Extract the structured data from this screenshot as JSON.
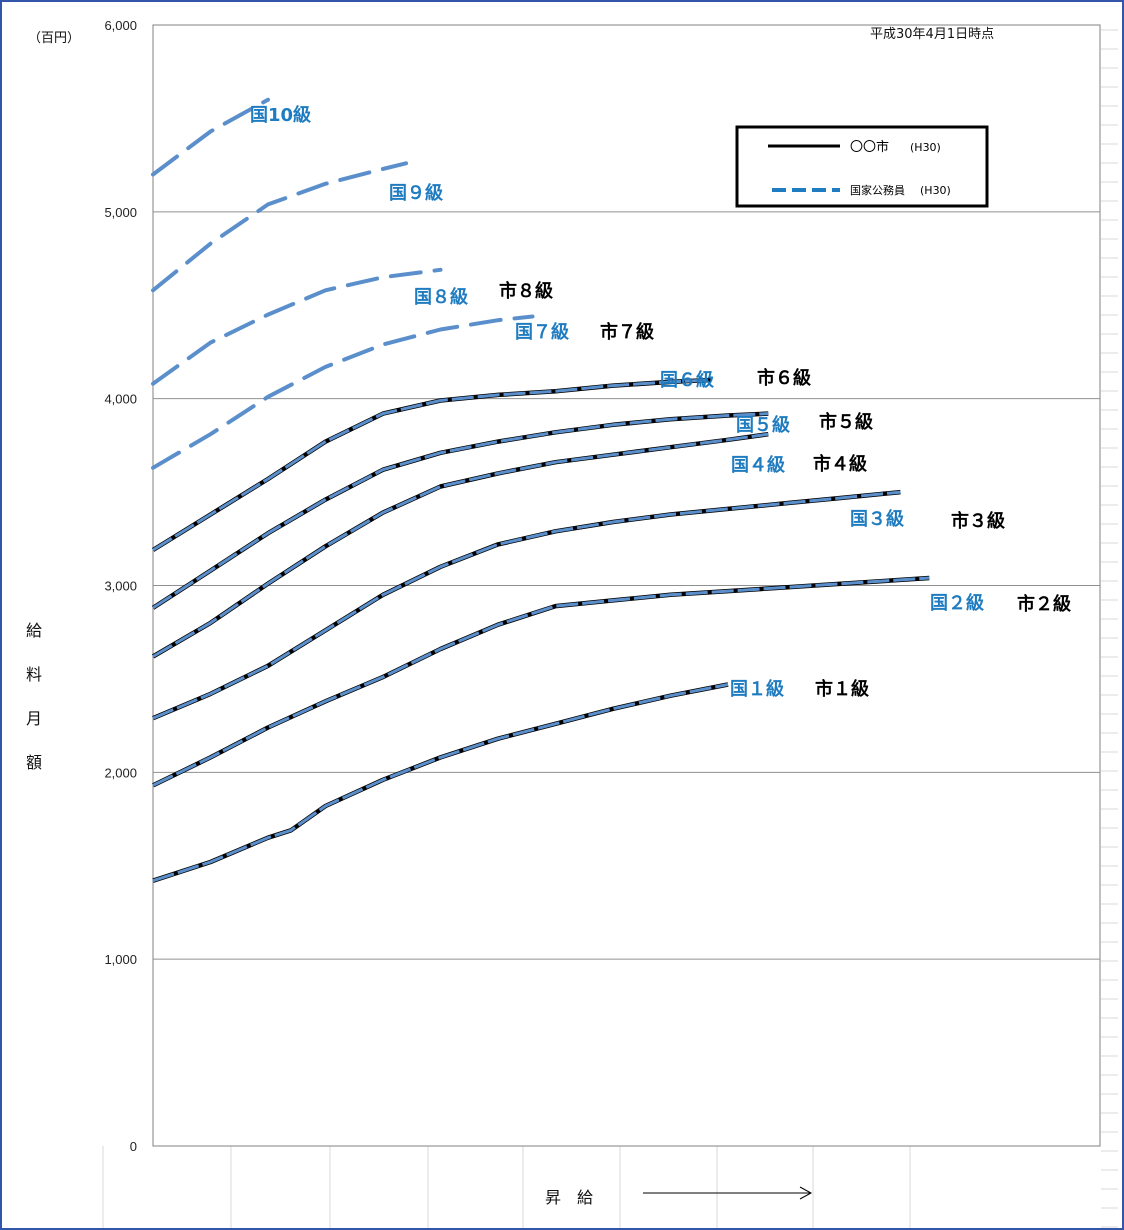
{
  "chart_data": {
    "type": "line",
    "unit_label": "（百円）",
    "as_of": "平成30年4月1日時点",
    "ylabel": "給料月額",
    "ylabel_chars": [
      "給",
      "料",
      "月",
      "額"
    ],
    "xlabel": "昇　給",
    "ylim": [
      0,
      6000
    ],
    "yticks": [
      {
        "value": 0,
        "label": "0"
      },
      {
        "value": 1000,
        "label": "1,000"
      },
      {
        "value": 2000,
        "label": "2,000"
      },
      {
        "value": 3000,
        "label": "3,000"
      },
      {
        "value": 4000,
        "label": "4,000"
      },
      {
        "value": 5000,
        "label": "5,000"
      },
      {
        "value": 6000,
        "label": "6,000"
      }
    ],
    "legend": {
      "placement": "top-right",
      "city": {
        "name": "〇〇市",
        "suffix": "(H30)"
      },
      "national": {
        "name": "国家公務員",
        "suffix": "(H30)"
      }
    },
    "series": [
      {
        "grade": "1",
        "kuni_label": "国１級",
        "shi_label": "市１級",
        "has_city": true,
        "x": [
          0,
          0.1,
          0.2,
          0.24,
          0.3,
          0.4,
          0.5,
          0.6,
          0.7,
          0.8,
          0.9,
          1.0
        ],
        "y": [
          1420,
          1520,
          1650,
          1690,
          1820,
          1960,
          2080,
          2180,
          2260,
          2340,
          2410,
          2470
        ]
      },
      {
        "grade": "2",
        "kuni_label": "国２級",
        "shi_label": "市２級",
        "has_city": true,
        "x": [
          0,
          0.1,
          0.2,
          0.3,
          0.4,
          0.5,
          0.6,
          0.7,
          0.8,
          0.9,
          1.0,
          1.1,
          1.2,
          1.3,
          1.35
        ],
        "y": [
          1930,
          2080,
          2240,
          2380,
          2510,
          2660,
          2790,
          2890,
          2920,
          2950,
          2970,
          2990,
          3010,
          3030,
          3040
        ]
      },
      {
        "grade": "3",
        "kuni_label": "国３級",
        "shi_label": "市３級",
        "has_city": true,
        "x": [
          0,
          0.1,
          0.2,
          0.3,
          0.4,
          0.5,
          0.6,
          0.7,
          0.8,
          0.9,
          1.0,
          1.1,
          1.2,
          1.3
        ],
        "y": [
          2290,
          2420,
          2570,
          2760,
          2950,
          3100,
          3220,
          3290,
          3340,
          3380,
          3410,
          3440,
          3470,
          3500
        ]
      },
      {
        "grade": "4",
        "kuni_label": "国４級",
        "shi_label": "市４級",
        "has_city": true,
        "x": [
          0,
          0.1,
          0.2,
          0.3,
          0.4,
          0.5,
          0.6,
          0.7,
          0.8,
          0.9,
          1.0,
          1.07
        ],
        "y": [
          2620,
          2800,
          3010,
          3210,
          3390,
          3530,
          3600,
          3660,
          3700,
          3740,
          3780,
          3810
        ]
      },
      {
        "grade": "5",
        "kuni_label": "国５級",
        "shi_label": "市５級",
        "has_city": true,
        "x": [
          0,
          0.1,
          0.2,
          0.3,
          0.4,
          0.5,
          0.6,
          0.7,
          0.8,
          0.9,
          1.0,
          1.07
        ],
        "y": [
          2880,
          3080,
          3280,
          3460,
          3620,
          3710,
          3770,
          3820,
          3860,
          3890,
          3910,
          3920
        ]
      },
      {
        "grade": "6",
        "kuni_label": "国６級",
        "shi_label": "市６級",
        "has_city": true,
        "x": [
          0,
          0.1,
          0.2,
          0.3,
          0.4,
          0.5,
          0.6,
          0.7,
          0.8,
          0.9,
          0.97
        ],
        "y": [
          3190,
          3380,
          3570,
          3770,
          3920,
          3990,
          4020,
          4040,
          4070,
          4090,
          4100
        ]
      },
      {
        "grade": "7",
        "kuni_label": "国７級",
        "shi_label": "市７級",
        "has_city": false,
        "x": [
          0,
          0.1,
          0.2,
          0.3,
          0.4,
          0.5,
          0.6,
          0.66
        ],
        "y": [
          3630,
          3810,
          4010,
          4170,
          4290,
          4370,
          4420,
          4440
        ]
      },
      {
        "grade": "8",
        "kuni_label": "国８級",
        "shi_label": "市８級",
        "has_city": false,
        "x": [
          0,
          0.1,
          0.2,
          0.3,
          0.4,
          0.5
        ],
        "y": [
          4080,
          4300,
          4450,
          4580,
          4650,
          4690
        ]
      },
      {
        "grade": "9",
        "kuni_label": "国９級",
        "shi_label": "",
        "has_city": false,
        "x": [
          0,
          0.1,
          0.2,
          0.3,
          0.4,
          0.44
        ],
        "y": [
          4580,
          4830,
          5040,
          5150,
          5230,
          5260
        ]
      },
      {
        "grade": "10",
        "kuni_label": "国10級",
        "shi_label": "",
        "has_city": false,
        "x": [
          0,
          0.1,
          0.2
        ],
        "y": [
          5200,
          5430,
          5600
        ]
      }
    ]
  }
}
